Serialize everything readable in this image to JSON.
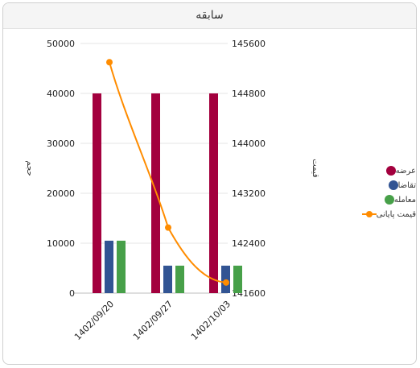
{
  "panel": {
    "title": "سابقه"
  },
  "chart_data": {
    "type": "bar",
    "categories": [
      "1402/09/20",
      "1402/09/27",
      "1402/10/03"
    ],
    "series": [
      {
        "name": "عرضه",
        "type": "bar",
        "axis": "left",
        "color": "#a3003e",
        "values": [
          40000,
          40000,
          40000
        ]
      },
      {
        "name": "تقاضا",
        "type": "bar",
        "axis": "left",
        "color": "#325493",
        "values": [
          10500,
          5500,
          5500
        ]
      },
      {
        "name": "معامله",
        "type": "bar",
        "axis": "left",
        "color": "#47a049",
        "values": [
          10500,
          5500,
          5500
        ]
      },
      {
        "name": "قیمت پایانی",
        "type": "line",
        "axis": "right",
        "color": "#ff8c00",
        "values": [
          145300,
          142650,
          141770
        ]
      }
    ],
    "y_left": {
      "label": "حجم",
      "min": 0,
      "max": 50000,
      "ticks": [
        0,
        10000,
        20000,
        30000,
        40000,
        50000
      ]
    },
    "y_right": {
      "label": "قیمت",
      "min": 141600,
      "max": 145600,
      "ticks": [
        141600,
        142400,
        143200,
        144000,
        144800,
        145600
      ]
    },
    "grid": true,
    "legend_position": "right"
  }
}
